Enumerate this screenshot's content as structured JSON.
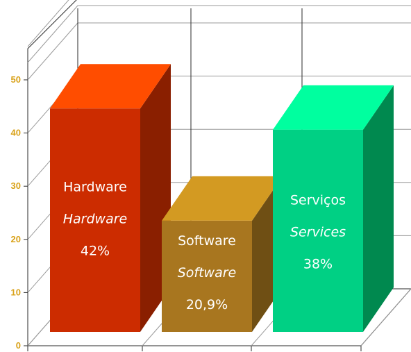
{
  "chart_data": {
    "type": "bar",
    "categories": [
      "Hardware",
      "Software",
      "Serviços"
    ],
    "labels": [
      {
        "pt": "Hardware",
        "en": "Hardware",
        "pct": "42%"
      },
      {
        "pt": "Software",
        "en": "Software",
        "pct": "20,9%"
      },
      {
        "pt": "Serviços",
        "en": "Services",
        "pct": "38%"
      }
    ],
    "values": [
      42,
      20.9,
      38
    ],
    "ylim": [
      0,
      50
    ],
    "yticks": [
      "0",
      "10",
      "20",
      "30",
      "40",
      "50"
    ],
    "title": "",
    "xlabel": "",
    "ylabel": "",
    "grid": true,
    "style": "3d"
  },
  "colors": {
    "hardware": {
      "front": "#cc2c00",
      "top": "#ff4d00",
      "side": "#8a1f00"
    },
    "software": {
      "front": "#a8761f",
      "top": "#d39a22",
      "side": "#6f4f14"
    },
    "services": {
      "front": "#00d084",
      "top": "#00ff9f",
      "side": "#00894f"
    },
    "tick": "#d9a21a"
  }
}
